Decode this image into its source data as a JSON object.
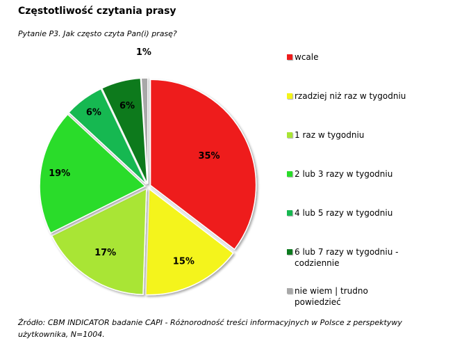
{
  "title": "Częstotliwość czytania prasy",
  "subtitle": "Pytanie P3. Jak często czyta Pan(i) prasę?",
  "footer": "Źródło: CBM INDICATOR badanie CAPI - Różnorodność treści informacyjnych w Polsce z perspektywy użytkownika, N=1004.",
  "chart_data": {
    "type": "pie",
    "title": "Częstotliwość czytania prasy",
    "legend_position": "right",
    "categories": [
      "wcale",
      "rzadziej niż raz w tygodniu",
      "1 raz w tygodniu",
      "2 lub 3 razy w tygodniu",
      "4 lub 5 razy w tygodniu",
      "6 lub 7 razy w tygodniu - codziennie",
      "nie wiem | trudno powiedzieć"
    ],
    "values": [
      35,
      15,
      17,
      19,
      6,
      6,
      1
    ],
    "value_labels": [
      "35%",
      "15%",
      "17%",
      "19%",
      "6%",
      "6%",
      "1%"
    ],
    "colors": [
      "#ee1c1c",
      "#f4f41a",
      "#a9e534",
      "#29dc29",
      "#17b851",
      "#0c7a1e",
      "#a8a8a8"
    ],
    "legend_labels": [
      [
        "wcale"
      ],
      [
        "rzadziej niż raz w tygodniu"
      ],
      [
        "1 raz w tygodniu"
      ],
      [
        "2 lub 3 razy w tygodniu"
      ],
      [
        "4 lub 5 razy w tygodniu"
      ],
      [
        "6 lub 7 razy w tygodniu -",
        "codziennie"
      ],
      [
        "nie wiem | trudno",
        "powiedzieć"
      ]
    ]
  }
}
